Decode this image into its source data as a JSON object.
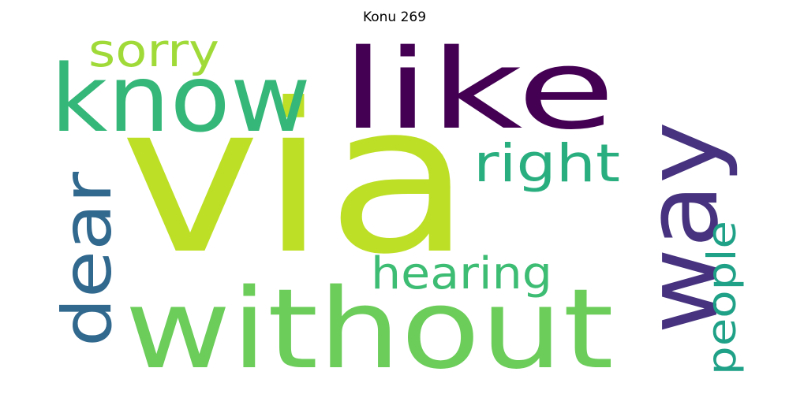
{
  "title": "Konu 269",
  "words": [
    {
      "text": "via",
      "color": "#bddf26"
    },
    {
      "text": "like",
      "color": "#440154"
    },
    {
      "text": "know",
      "color": "#35b779"
    },
    {
      "text": "without",
      "color": "#6ccd5a"
    },
    {
      "text": "way",
      "color": "#46327e"
    },
    {
      "text": "dear",
      "color": "#31688e"
    },
    {
      "text": "right",
      "color": "#29af7f"
    },
    {
      "text": "hearing",
      "color": "#3dbc74"
    },
    {
      "text": "sorry",
      "color": "#a0da39"
    },
    {
      "text": "people",
      "color": "#1fa187"
    }
  ]
}
